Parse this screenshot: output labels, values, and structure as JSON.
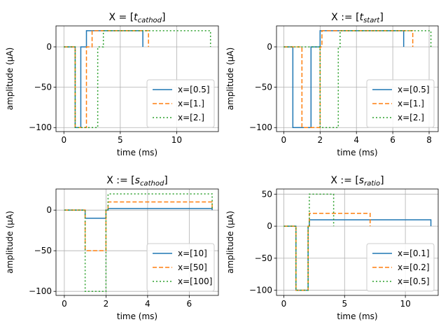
{
  "chart_data": [
    {
      "type": "line",
      "title_prefix": "X = [",
      "title_var": "t",
      "title_sub": "cathod",
      "title_suffix": "]",
      "xlabel": "time (ms)",
      "ylabel": "amplitude (µA)",
      "xlim": [
        -0.7,
        13.7
      ],
      "ylim": [
        -105,
        26
      ],
      "xticks": [
        0,
        5,
        10
      ],
      "yticks": [
        0,
        -50,
        -100
      ],
      "grid": true,
      "legend_position": "lower-right",
      "series": [
        {
          "name": "x=[0.5]",
          "color": "#1f77b4",
          "dash": "solid",
          "x": [
            0,
            1.0,
            1.0,
            1.5,
            1.5,
            2.0,
            2.0,
            7.0,
            7.0
          ],
          "y": [
            0,
            0,
            -100,
            -100,
            0,
            0,
            20,
            20,
            0
          ]
        },
        {
          "name": "x=[1.]",
          "color": "#ff7f0e",
          "dash": "dashed",
          "x": [
            0,
            1.0,
            1.0,
            2.0,
            2.0,
            2.5,
            2.5,
            7.5,
            7.5
          ],
          "y": [
            0,
            0,
            -100,
            -100,
            0,
            0,
            20,
            20,
            0
          ]
        },
        {
          "name": "x=[2.]",
          "color": "#2ca02c",
          "dash": "dotted",
          "x": [
            0,
            1.0,
            1.0,
            3.0,
            3.0,
            3.5,
            3.5,
            13.0,
            13.0
          ],
          "y": [
            0,
            0,
            -100,
            -100,
            0,
            0,
            20,
            20,
            0
          ]
        }
      ]
    },
    {
      "type": "line",
      "title_prefix": "X := [",
      "title_var": "t",
      "title_sub": "start",
      "title_suffix": "]",
      "xlabel": "time (ms)",
      "ylabel": "amplitude (µA)",
      "xlim": [
        -0.4,
        8.5
      ],
      "ylim": [
        -105,
        26
      ],
      "xticks": [
        0,
        2,
        4,
        6,
        8
      ],
      "yticks": [
        0,
        -50,
        -100
      ],
      "grid": true,
      "legend_position": "lower-right",
      "series": [
        {
          "name": "x=[0.5]",
          "color": "#1f77b4",
          "dash": "solid",
          "x": [
            0,
            0.5,
            0.5,
            1.5,
            1.5,
            2.0,
            2.0,
            6.6,
            6.6
          ],
          "y": [
            0,
            0,
            -100,
            -100,
            0,
            0,
            20,
            20,
            0
          ]
        },
        {
          "name": "x=[1.]",
          "color": "#ff7f0e",
          "dash": "dashed",
          "x": [
            0,
            1.0,
            1.0,
            2.0,
            2.0,
            2.1,
            2.1,
            7.1,
            7.1
          ],
          "y": [
            0,
            0,
            -100,
            -100,
            0,
            0,
            20,
            20,
            0
          ]
        },
        {
          "name": "x=[2.]",
          "color": "#2ca02c",
          "dash": "dotted",
          "x": [
            0,
            2.0,
            2.0,
            3.0,
            3.0,
            3.1,
            3.1,
            8.1,
            8.1
          ],
          "y": [
            0,
            0,
            -100,
            -100,
            0,
            0,
            20,
            20,
            0
          ]
        }
      ]
    },
    {
      "type": "line",
      "title_prefix": "X := [",
      "title_var": "s",
      "title_sub": "cathod",
      "title_suffix": "]",
      "xlabel": "time (ms)",
      "ylabel": "amplitude (µA)",
      "xlim": [
        -0.4,
        7.4
      ],
      "ylim": [
        -105,
        26
      ],
      "xticks": [
        0,
        2,
        4,
        6
      ],
      "yticks": [
        0,
        -50,
        -100
      ],
      "grid": true,
      "legend_position": "lower-right",
      "series": [
        {
          "name": "x=[10]",
          "color": "#1f77b4",
          "dash": "solid",
          "x": [
            0,
            1.0,
            1.0,
            2.0,
            2.0,
            2.1,
            2.1,
            7.1,
            7.1
          ],
          "y": [
            0,
            0,
            -10,
            -10,
            0,
            0,
            2,
            2,
            0
          ]
        },
        {
          "name": "x=[50]",
          "color": "#ff7f0e",
          "dash": "dashed",
          "x": [
            0,
            1.0,
            1.0,
            2.0,
            2.0,
            2.1,
            2.1,
            7.1,
            7.1
          ],
          "y": [
            0,
            0,
            -50,
            -50,
            0,
            0,
            10,
            10,
            0
          ]
        },
        {
          "name": "x=[100]",
          "color": "#2ca02c",
          "dash": "dotted",
          "x": [
            0,
            1.0,
            1.0,
            2.0,
            2.0,
            2.1,
            2.1,
            7.1,
            7.1
          ],
          "y": [
            0,
            0,
            -100,
            -100,
            0,
            0,
            20,
            20,
            0
          ]
        }
      ]
    },
    {
      "type": "line",
      "title_prefix": "X := [",
      "title_var": "s",
      "title_sub": "ratio",
      "title_suffix": "]",
      "xlabel": "time (ms)",
      "ylabel": "amplitude (µA)",
      "xlim": [
        -0.6,
        12.7
      ],
      "ylim": [
        -108,
        58
      ],
      "xticks": [
        0,
        5,
        10
      ],
      "yticks": [
        50,
        0,
        -50,
        -100
      ],
      "grid": true,
      "legend_position": "lower-right",
      "series": [
        {
          "name": "x=[0.1]",
          "color": "#1f77b4",
          "dash": "solid",
          "x": [
            0,
            1.0,
            1.0,
            2.0,
            2.0,
            2.1,
            2.1,
            12.1,
            12.1
          ],
          "y": [
            0,
            0,
            -100,
            -100,
            0,
            0,
            10,
            10,
            0
          ]
        },
        {
          "name": "x=[0.2]",
          "color": "#ff7f0e",
          "dash": "dashed",
          "x": [
            0,
            1.0,
            1.0,
            2.0,
            2.0,
            2.1,
            2.1,
            7.1,
            7.1
          ],
          "y": [
            0,
            0,
            -100,
            -100,
            0,
            0,
            20,
            20,
            0
          ]
        },
        {
          "name": "x=[0.5]",
          "color": "#2ca02c",
          "dash": "dotted",
          "x": [
            0,
            1.0,
            1.0,
            2.0,
            2.0,
            2.1,
            2.1,
            4.1,
            4.1
          ],
          "y": [
            0,
            0,
            -100,
            -100,
            0,
            0,
            50,
            50,
            0
          ]
        }
      ]
    }
  ]
}
